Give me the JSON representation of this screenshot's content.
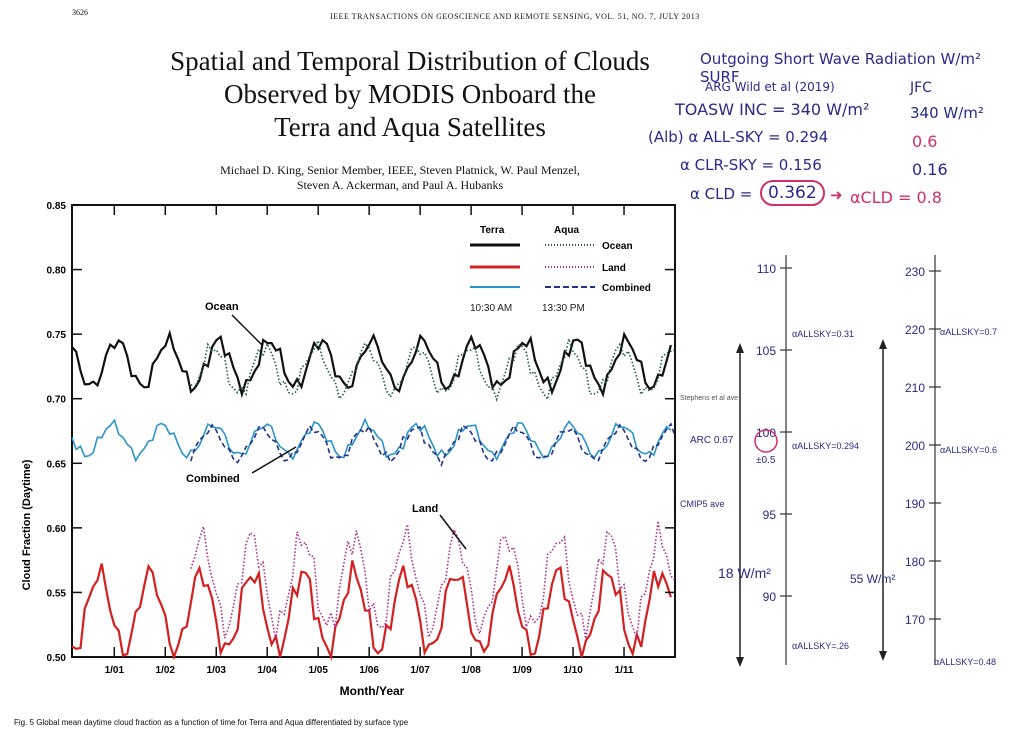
{
  "page": {
    "page_number": "3626",
    "journal_header": "IEEE TRANSACTIONS ON GEOSCIENCE AND REMOTE SENSING, VOL. 51, NO. 7, JULY 2013",
    "title_lines": [
      "Spatial and Temporal Distribution of Clouds",
      "Observed by MODIS Onboard the",
      "Terra and Aqua Satellites"
    ],
    "authors_line1": "Michael D. King, Senior Member, IEEE, Steven Platnick, W. Paul Menzel,",
    "authors_line2": "Steven A. Ackerman, and Paul A. Hubanks",
    "caption": "Fig. 5    Global mean daytime cloud fraction as a function of time for Terra and Aqua differentiated by surface type"
  },
  "notes": {
    "heading": "Outgoing Short Wave Radiation W/m² SURF",
    "col1_heading": "ARG Wild et al (2019)",
    "col2_heading": "JFC",
    "toa_label": "TOASW INC = 340 W/m²",
    "toa_value_jfc": "340 W/m²",
    "alpha_allsky_label": "(Alb) α ALL-SKY = 0.294",
    "alpha_allsky_jfc": "0.6",
    "alpha_clrsky_label": "α CLR-SKY = 0.156",
    "alpha_clrsky_jfc": "0.16",
    "alpha_cld_label": "α CLD =",
    "alpha_cld_value": "0.362",
    "alpha_cld_jfc": "αCLD = 0.8"
  },
  "scales": {
    "scale1": {
      "ticks": [
        "110",
        "105",
        "100",
        "95",
        "90"
      ],
      "arc_note": "ARC 0.67",
      "stephens_note": "Stephens et al ave",
      "cmip_note": "CMIP5 ave",
      "mid_pm": "±0.5",
      "bracket_label": "18 W/m²",
      "alpha_top": "αALLSKY=0.31",
      "alpha_mid": "αALLSKY=0.294",
      "alpha_bot": "αALLSKY=.26"
    },
    "scale2": {
      "ticks": [
        "230",
        "220",
        "210",
        "200",
        "190",
        "180",
        "170"
      ],
      "bracket_label": "55 W/m²",
      "alpha_top": "αALLSKY=0.7",
      "alpha_mid": "αALLSKY=0.6",
      "alpha_bot": "αALLSKY=0.48"
    }
  },
  "chart_data": {
    "type": "line",
    "title": "",
    "xlabel": "Month/Year",
    "ylabel": "Cloud Fraction (Daytime)",
    "ylim": [
      0.5,
      0.85
    ],
    "yticks": [
      "0.50",
      "0.55",
      "0.60",
      "0.65",
      "0.70",
      "0.75",
      "0.80",
      "0.85"
    ],
    "xlim": [
      2000.17,
      2012.0
    ],
    "xticks": [
      "1/01",
      "1/02",
      "1/03",
      "1/04",
      "1/05",
      "1/06",
      "1/07",
      "1/08",
      "1/09",
      "1/10",
      "1/11"
    ],
    "legend": {
      "terra_header": "Terra",
      "aqua_header": "Aqua",
      "entries": [
        "Ocean",
        "Land",
        "Combined"
      ],
      "terra_time": "10:30 AM",
      "aqua_time": "13:30 PM",
      "position": "top-right"
    },
    "annotations": [
      "Ocean",
      "Combined",
      "Land"
    ],
    "series": [
      {
        "name": "Terra Ocean",
        "color": "#111111",
        "dash": "solid",
        "start": 2000.17,
        "base": 0.727,
        "amp": 0.018,
        "phase": 0.2
      },
      {
        "name": "Aqua Ocean",
        "color": "#1a5c4a",
        "dash": "dotted",
        "start": 2002.5,
        "base": 0.722,
        "amp": 0.018,
        "phase": 0.3
      },
      {
        "name": "Terra Land",
        "color": "#d42020",
        "dash": "solid",
        "start": 2000.17,
        "base": 0.535,
        "amp": 0.03,
        "phase": 0.55
      },
      {
        "name": "Aqua Land",
        "color": "#b02a8a",
        "dash": "dotted",
        "start": 2002.5,
        "base": 0.558,
        "amp": 0.035,
        "phase": 0.55
      },
      {
        "name": "Terra Combined",
        "color": "#2a95c9",
        "dash": "solid",
        "start": 2000.17,
        "base": 0.668,
        "amp": 0.012,
        "phase": 0.3
      },
      {
        "name": "Aqua Combined",
        "color": "#22338a",
        "dash": "dashed",
        "start": 2002.5,
        "base": 0.665,
        "amp": 0.012,
        "phase": 0.35
      }
    ]
  }
}
